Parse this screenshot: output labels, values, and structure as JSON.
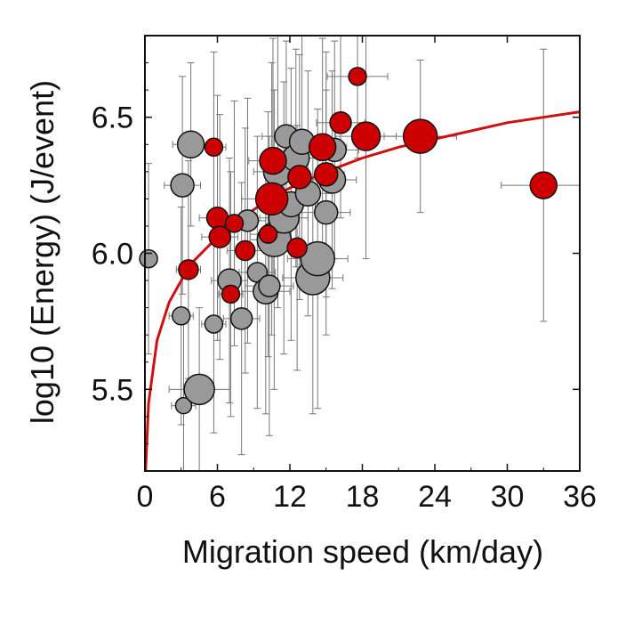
{
  "chart_data": {
    "type": "scatter",
    "xlabel": "Migration speed (km/day)",
    "ylabel": "log10 (Energy)  (J/event)",
    "xlim": [
      0,
      36
    ],
    "ylim": [
      5.2,
      6.8
    ],
    "xticks": [
      0,
      6,
      12,
      18,
      24,
      30,
      36
    ],
    "yticks": [
      5.5,
      6.0,
      6.5
    ],
    "ytick_labels": [
      "5.5",
      "6.0",
      "6.5"
    ],
    "grid": false,
    "legend": "none",
    "colors": {
      "red_fill": "#cc0000",
      "gray_fill": "#999999",
      "marker_edge": "#111111",
      "error_bar": "#777777",
      "fit_curve": "#cc1111"
    },
    "marker_size_note": "marker radius varies by point",
    "fit_curve": [
      {
        "x": 0.05,
        "y": 5.2
      },
      {
        "x": 0.3,
        "y": 5.45
      },
      {
        "x": 1,
        "y": 5.68
      },
      {
        "x": 2,
        "y": 5.82
      },
      {
        "x": 3,
        "y": 5.9
      },
      {
        "x": 4,
        "y": 5.97
      },
      {
        "x": 6,
        "y": 6.06
      },
      {
        "x": 8,
        "y": 6.13
      },
      {
        "x": 10,
        "y": 6.19
      },
      {
        "x": 12,
        "y": 6.24
      },
      {
        "x": 15,
        "y": 6.3
      },
      {
        "x": 18,
        "y": 6.35
      },
      {
        "x": 21,
        "y": 6.39
      },
      {
        "x": 24,
        "y": 6.42
      },
      {
        "x": 27,
        "y": 6.45
      },
      {
        "x": 30,
        "y": 6.48
      },
      {
        "x": 33,
        "y": 6.5
      },
      {
        "x": 36,
        "y": 6.52
      }
    ],
    "series": [
      {
        "color": "gray",
        "points": [
          {
            "x": 0.3,
            "y": 5.98,
            "xerr": 0.5,
            "yerr": 0.35,
            "r": 10
          },
          {
            "x": 3.0,
            "y": 5.77,
            "xerr": 1.0,
            "yerr": 0.4,
            "r": 10
          },
          {
            "x": 3.2,
            "y": 5.44,
            "xerr": 1.0,
            "yerr": 0.3,
            "r": 9
          },
          {
            "x": 3.8,
            "y": 6.4,
            "xerr": 1.5,
            "yerr": 0.3,
            "r": 15
          },
          {
            "x": 3.1,
            "y": 6.25,
            "xerr": 1.5,
            "yerr": 0.4,
            "r": 13
          },
          {
            "x": 4.5,
            "y": 5.5,
            "xerr": 2.5,
            "yerr": 0.3,
            "r": 17
          },
          {
            "x": 5.7,
            "y": 5.74,
            "xerr": 1.0,
            "yerr": 0.4,
            "r": 10
          },
          {
            "x": 7.0,
            "y": 5.9,
            "xerr": 1.5,
            "yerr": 0.45,
            "r": 13
          },
          {
            "x": 8.0,
            "y": 5.76,
            "xerr": 1.5,
            "yerr": 0.5,
            "r": 12
          },
          {
            "x": 8.5,
            "y": 6.12,
            "xerr": 1.5,
            "yerr": 0.45,
            "r": 12
          },
          {
            "x": 9.3,
            "y": 5.93,
            "xerr": 1.5,
            "yerr": 0.5,
            "r": 11
          },
          {
            "x": 10.0,
            "y": 5.86,
            "xerr": 2.0,
            "yerr": 0.45,
            "r": 14
          },
          {
            "x": 10.3,
            "y": 5.88,
            "xerr": 2.0,
            "yerr": 0.55,
            "r": 12
          },
          {
            "x": 10.7,
            "y": 6.05,
            "xerr": 2.0,
            "yerr": 0.55,
            "r": 19
          },
          {
            "x": 11.0,
            "y": 6.3,
            "xerr": 2.0,
            "yerr": 0.5,
            "r": 16
          },
          {
            "x": 11.5,
            "y": 6.13,
            "xerr": 2.0,
            "yerr": 0.5,
            "r": 17
          },
          {
            "x": 11.7,
            "y": 6.43,
            "xerr": 2.0,
            "yerr": 0.35,
            "r": 13
          },
          {
            "x": 12.1,
            "y": 6.18,
            "xerr": 2.0,
            "yerr": 0.5,
            "r": 14
          },
          {
            "x": 12.5,
            "y": 6.35,
            "xerr": 2.0,
            "yerr": 0.4,
            "r": 15
          },
          {
            "x": 13.0,
            "y": 6.41,
            "xerr": 2.0,
            "yerr": 0.45,
            "r": 14
          },
          {
            "x": 13.5,
            "y": 6.22,
            "xerr": 2.0,
            "yerr": 0.45,
            "r": 14
          },
          {
            "x": 13.9,
            "y": 5.91,
            "xerr": 2.5,
            "yerr": 0.5,
            "r": 19
          },
          {
            "x": 14.3,
            "y": 5.98,
            "xerr": 2.5,
            "yerr": 0.55,
            "r": 19
          },
          {
            "x": 15.0,
            "y": 6.15,
            "xerr": 2.0,
            "yerr": 0.45,
            "r": 13
          },
          {
            "x": 15.5,
            "y": 6.27,
            "xerr": 2.0,
            "yerr": 0.4,
            "r": 15
          },
          {
            "x": 15.7,
            "y": 6.38,
            "xerr": 2.0,
            "yerr": 0.4,
            "r": 13
          }
        ]
      },
      {
        "color": "red",
        "points": [
          {
            "x": 3.6,
            "y": 5.94,
            "xerr": 1.0,
            "yerr": 0.4,
            "r": 11
          },
          {
            "x": 5.7,
            "y": 6.39,
            "xerr": 1.0,
            "yerr": 0.35,
            "r": 10
          },
          {
            "x": 6.0,
            "y": 6.13,
            "xerr": 1.5,
            "yerr": 0.45,
            "r": 12
          },
          {
            "x": 6.2,
            "y": 6.06,
            "xerr": 1.5,
            "yerr": 0.45,
            "r": 12
          },
          {
            "x": 7.1,
            "y": 5.85,
            "xerr": 1.0,
            "yerr": 0.45,
            "r": 10
          },
          {
            "x": 7.4,
            "y": 6.11,
            "xerr": 1.5,
            "yerr": 0.45,
            "r": 10
          },
          {
            "x": 8.3,
            "y": 6.01,
            "xerr": 1.5,
            "yerr": 0.45,
            "r": 11
          },
          {
            "x": 10.2,
            "y": 6.07,
            "xerr": 1.5,
            "yerr": 0.45,
            "r": 10
          },
          {
            "x": 10.5,
            "y": 6.2,
            "xerr": 2.5,
            "yerr": 0.5,
            "r": 18
          },
          {
            "x": 10.6,
            "y": 6.34,
            "xerr": 2.0,
            "yerr": 0.45,
            "r": 15
          },
          {
            "x": 12.6,
            "y": 6.02,
            "xerr": 1.5,
            "yerr": 0.45,
            "r": 11
          },
          {
            "x": 12.8,
            "y": 6.28,
            "xerr": 2.0,
            "yerr": 0.45,
            "r": 13
          },
          {
            "x": 14.7,
            "y": 6.39,
            "xerr": 2.0,
            "yerr": 0.4,
            "r": 15
          },
          {
            "x": 15.0,
            "y": 6.29,
            "xerr": 1.5,
            "yerr": 0.45,
            "r": 13
          },
          {
            "x": 16.2,
            "y": 6.48,
            "xerr": 2.0,
            "yerr": 0.35,
            "r": 12
          },
          {
            "x": 17.6,
            "y": 6.65,
            "xerr": 2.5,
            "yerr": 0.3,
            "r": 10
          },
          {
            "x": 18.3,
            "y": 6.43,
            "xerr": 2.5,
            "yerr": 0.45,
            "r": 16
          },
          {
            "x": 22.8,
            "y": 6.43,
            "xerr": 3.0,
            "yerr": 0.28,
            "r": 19
          },
          {
            "x": 33.0,
            "y": 6.25,
            "xerr": 3.5,
            "yerr": 0.5,
            "r": 15
          }
        ]
      }
    ]
  }
}
